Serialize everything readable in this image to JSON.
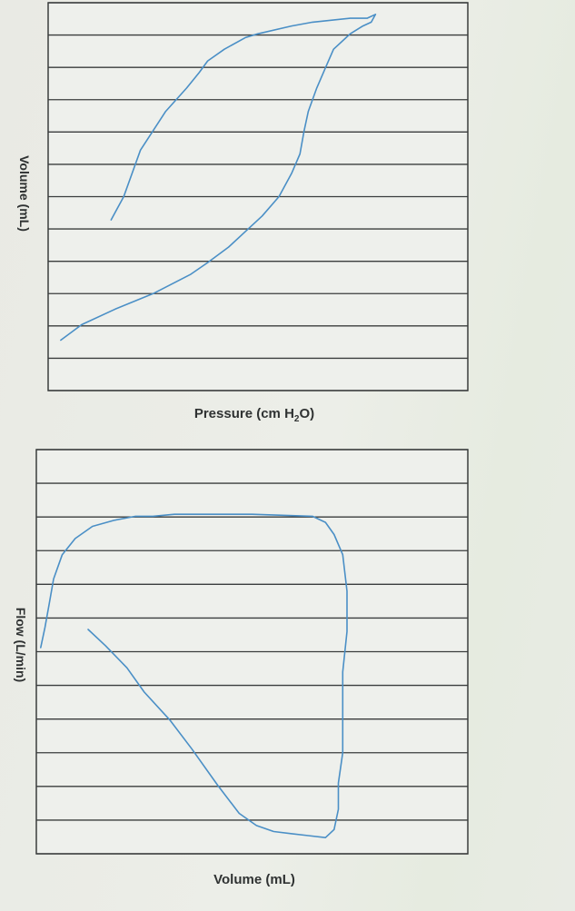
{
  "chart_data": [
    {
      "type": "line",
      "title": "",
      "xlabel": "Pressure (cm H2O)",
      "xlabel_main": "Pressure (cm H",
      "xlabel_sub": "2",
      "xlabel_tail": "O)",
      "ylabel": "Volume (mL)",
      "grid": true,
      "xlim": [
        0,
        100
      ],
      "ylim": [
        0,
        100
      ],
      "series": [
        {
          "color": "#4a8fc6",
          "x": [
            3,
            8,
            16,
            25,
            34,
            38,
            43,
            47,
            51,
            55,
            58,
            60,
            61,
            62,
            64,
            66,
            68,
            72,
            75,
            77,
            78,
            76,
            72,
            63,
            58,
            50,
            47,
            42,
            38,
            36,
            33,
            28,
            22,
            18,
            15
          ],
          "y": [
            13,
            17,
            21,
            25,
            30,
            33,
            37,
            41,
            45,
            50,
            56,
            61,
            67,
            72,
            78,
            83,
            88,
            92,
            94,
            95,
            97,
            96,
            96,
            95,
            94,
            92,
            91,
            88,
            85,
            82,
            78,
            72,
            62,
            50,
            44
          ]
        }
      ]
    },
    {
      "type": "line",
      "title": "",
      "xlabel": "Volume (mL)",
      "ylabel": "Flow (L/min)",
      "grid": true,
      "xlim": [
        0,
        100
      ],
      "ylim": [
        -100,
        100
      ],
      "series": [
        {
          "color": "#4a8fc6",
          "x": [
            1,
            2,
            3,
            4,
            6,
            9,
            13,
            18,
            23,
            27,
            32,
            38,
            50,
            64,
            67,
            69,
            71,
            72,
            72,
            71,
            71,
            71,
            70,
            70,
            69,
            67,
            63,
            59,
            55,
            51,
            47,
            42,
            36,
            31,
            25,
            21,
            16,
            12
          ],
          "y": [
            2,
            12,
            24,
            36,
            48,
            56,
            62,
            65,
            67,
            67,
            68,
            68,
            68,
            67,
            64,
            58,
            48,
            30,
            10,
            -10,
            -30,
            -50,
            -65,
            -78,
            -88,
            -92,
            -91,
            -90,
            -89,
            -86,
            -80,
            -66,
            -48,
            -34,
            -20,
            -8,
            3,
            11
          ]
        }
      ]
    }
  ]
}
